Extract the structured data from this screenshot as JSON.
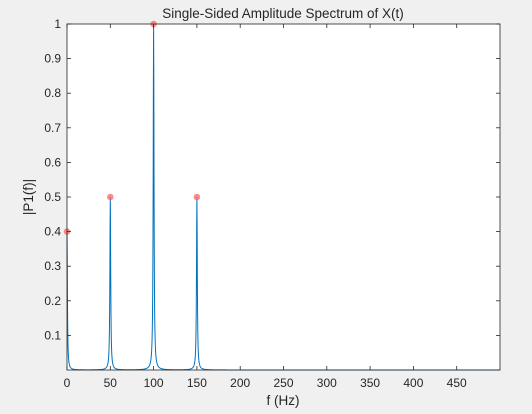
{
  "chart_data": {
    "type": "line",
    "title": "Single-Sided Amplitude Spectrum of X(t)",
    "xlabel": "f (Hz)",
    "ylabel": "|P1(f)|",
    "xlim": [
      0,
      500
    ],
    "ylim": [
      0,
      1
    ],
    "xticks": [
      0,
      50,
      100,
      150,
      200,
      250,
      300,
      350,
      400,
      450
    ],
    "yticks": [
      0.1,
      0.2,
      0.3,
      0.4,
      0.5,
      0.6,
      0.7,
      0.8,
      0.9,
      1
    ],
    "grid": false,
    "line_color": "#0072bd",
    "marker_color": "#ff6666",
    "peaks": [
      {
        "x": 0,
        "y": 0.4
      },
      {
        "x": 50,
        "y": 0.5
      },
      {
        "x": 100,
        "y": 1.0
      },
      {
        "x": 150,
        "y": 0.5
      }
    ]
  }
}
